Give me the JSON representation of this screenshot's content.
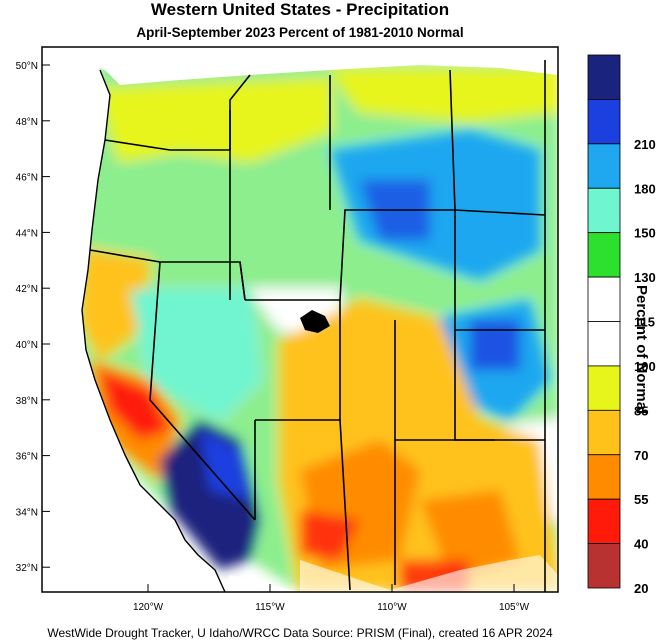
{
  "title": "Western United States - Precipitation",
  "subtitle": "April-September 2023  Percent of 1981-2010 Normal",
  "footer": "WestWide Drought Tracker, U Idaho/WRCC Data Source: PRISM (Final), created 16 APR 2024",
  "legend": {
    "title": "Percent of Normal",
    "bins": [
      {
        "label": "",
        "color": "#1a237e"
      },
      {
        "label": "210",
        "color": "#1c3fe0"
      },
      {
        "label": "180",
        "color": "#1fa7f0"
      },
      {
        "label": "150",
        "color": "#6ff5d0"
      },
      {
        "label": "130",
        "color": "#2ee02e"
      },
      {
        "label": "115",
        "color": "#ffffff"
      },
      {
        "label": "100",
        "color": "#ffffff"
      },
      {
        "label": "85",
        "color": "#e8f51a"
      },
      {
        "label": "70",
        "color": "#ffc21a"
      },
      {
        "label": "55",
        "color": "#ff8c00"
      },
      {
        "label": "40",
        "color": "#ff1a0a"
      },
      {
        "label": "20",
        "color": "#b83232"
      }
    ]
  },
  "axes": {
    "lat_labels": [
      "50°N",
      "48°N",
      "46°N",
      "44°N",
      "42°N",
      "40°N",
      "38°N",
      "36°N",
      "34°N",
      "32°N"
    ],
    "lon_labels": [
      "120°W",
      "115°W",
      "110°W",
      "105°W"
    ]
  }
}
